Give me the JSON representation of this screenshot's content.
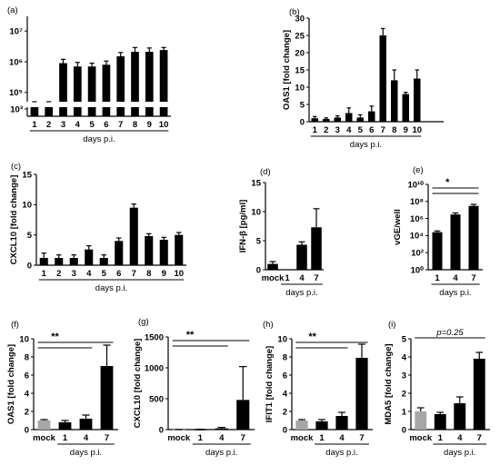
{
  "chart_data": [
    {
      "panel": "(a)",
      "type": "bar",
      "yscale": "log",
      "axis_break": true,
      "categories": [
        "1",
        "2",
        "3",
        "4",
        "5",
        "6",
        "7",
        "8",
        "9",
        "10"
      ],
      "values": [
        30000,
        22000,
        900000,
        700000,
        700000,
        800000,
        1500000,
        2100000,
        2100000,
        2400000
      ],
      "errors": [
        8000,
        12000,
        300000,
        250000,
        200000,
        250000,
        500000,
        800000,
        700000,
        500000
      ],
      "yticks": [
        1000,
        100000,
        1000000,
        10000000
      ],
      "ytick_labels": [
        "10³",
        "10⁵",
        "10⁶",
        "10⁷"
      ],
      "ylabel": "vGE/well",
      "xlabel": "days p.i.",
      "bar_colors": [
        "#000000"
      ]
    },
    {
      "panel": "(b)",
      "type": "bar",
      "yscale": "linear",
      "categories": [
        "1",
        "2",
        "3",
        "4",
        "5",
        "6",
        "7",
        "8",
        "9",
        "10"
      ],
      "values": [
        1,
        0.8,
        1.2,
        2.5,
        1.2,
        3,
        25,
        12,
        8,
        12.5
      ],
      "errors": [
        0.5,
        0.3,
        0.5,
        1.5,
        0.8,
        1.5,
        2,
        3,
        0.5,
        2.5
      ],
      "ylim": [
        0,
        30
      ],
      "yticks": [
        0,
        5,
        10,
        15,
        20,
        25,
        30
      ],
      "ytick_labels": [
        "0",
        "5",
        "10",
        "15",
        "20",
        "25",
        "30"
      ],
      "ylabel": "OAS1 [fold change]",
      "xlabel": "days p.i.",
      "bar_colors": [
        "#000000"
      ]
    },
    {
      "panel": "(c)",
      "type": "bar",
      "yscale": "linear",
      "categories": [
        "1",
        "2",
        "3",
        "4",
        "5",
        "6",
        "7",
        "8",
        "9",
        "10"
      ],
      "values": [
        1.2,
        1.2,
        1.2,
        2.6,
        1.2,
        4,
        9.5,
        4.8,
        4.2,
        5
      ],
      "errors": [
        0.8,
        0.5,
        0.5,
        0.6,
        0.5,
        0.5,
        0.6,
        0.4,
        0.4,
        0.4
      ],
      "ylim": [
        0,
        15
      ],
      "yticks": [
        0,
        5,
        10,
        15
      ],
      "ytick_labels": [
        "0",
        "5",
        "10",
        "15"
      ],
      "ylabel": "CXCL10 [fold change]",
      "xlabel": "days p.i.",
      "bar_colors": [
        "#000000"
      ]
    },
    {
      "panel": "(d)",
      "type": "bar",
      "yscale": "linear",
      "categories": [
        "mock",
        "1",
        "4",
        "7"
      ],
      "values": [
        1,
        0,
        4.3,
        7.3
      ],
      "errors": [
        0.4,
        0,
        0.5,
        3.2
      ],
      "ylim": [
        0,
        15
      ],
      "yticks": [
        0,
        5,
        10,
        15
      ],
      "ytick_labels": [
        "0",
        "5",
        "10",
        "15"
      ],
      "ylabel": "IFN-β [pg/ml]",
      "xlabel": "days p.i.",
      "bar_colors": [
        "#000000"
      ]
    },
    {
      "panel": "(e)",
      "type": "bar",
      "yscale": "log",
      "categories": [
        "1",
        "4",
        "7"
      ],
      "values": [
        25000,
        3000000,
        30000000
      ],
      "errors": [
        10000,
        1500000,
        15000000
      ],
      "ylim": [
        1,
        10000000000
      ],
      "yticks": [
        1,
        100,
        10000,
        1000000,
        100000000,
        10000000000
      ],
      "ytick_labels": [
        "10⁰",
        "10²",
        "10⁴",
        "10⁶",
        "10⁸",
        "10¹⁰"
      ],
      "ylabel": "vGE/well",
      "xlabel": "days p.i.",
      "bar_colors": [
        "#000000"
      ],
      "significance": [
        {
          "from": "1",
          "to": "7",
          "label": "*"
        }
      ]
    },
    {
      "panel": "(f)",
      "type": "bar",
      "yscale": "linear",
      "categories": [
        "mock",
        "1",
        "4",
        "7"
      ],
      "values": [
        1,
        0.8,
        1.2,
        7
      ],
      "errors": [
        0.1,
        0.2,
        0.4,
        2.3
      ],
      "ylim": [
        0,
        10
      ],
      "yticks": [
        0,
        2,
        4,
        6,
        8,
        10
      ],
      "ytick_labels": [
        "0",
        "2",
        "4",
        "6",
        "8",
        "10"
      ],
      "ylabel": "OAS1 [fold change]",
      "xlabel": "days p.i.",
      "bar_colors": [
        "#a6a6a6",
        "#000000",
        "#000000",
        "#000000"
      ],
      "significance": [
        {
          "from": "mock",
          "to": "7",
          "label": "**"
        }
      ]
    },
    {
      "panel": "(g)",
      "type": "bar",
      "yscale": "linear",
      "categories": [
        "mock",
        "1",
        "4",
        "7"
      ],
      "values": [
        1,
        3,
        20,
        480
      ],
      "errors": [
        0.5,
        2,
        15,
        540
      ],
      "ylim": [
        0,
        1500
      ],
      "yticks": [
        0,
        500,
        1000,
        1500
      ],
      "ytick_labels": [
        "0",
        "500",
        "1000",
        "1500"
      ],
      "ylabel": "CXCL10 [fold change]",
      "xlabel": "days p.i.",
      "bar_colors": [
        "#a6a6a6",
        "#000000",
        "#000000",
        "#000000"
      ],
      "significance": [
        {
          "from": "mock",
          "to": "7",
          "label": "**"
        }
      ]
    },
    {
      "panel": "(h)",
      "type": "bar",
      "yscale": "linear",
      "categories": [
        "mock",
        "1",
        "4",
        "7"
      ],
      "values": [
        1,
        0.9,
        1.5,
        7.9
      ],
      "errors": [
        0.1,
        0.2,
        0.4,
        1.5
      ],
      "ylim": [
        0,
        10
      ],
      "yticks": [
        0,
        2,
        4,
        6,
        8,
        10
      ],
      "ytick_labels": [
        "0",
        "2",
        "4",
        "6",
        "8",
        "10"
      ],
      "ylabel": "IFIT1 [fold change]",
      "xlabel": "days p.i.",
      "bar_colors": [
        "#a6a6a6",
        "#000000",
        "#000000",
        "#000000"
      ],
      "significance": [
        {
          "from": "mock",
          "to": "7",
          "label": "**"
        }
      ]
    },
    {
      "panel": "(i)",
      "type": "bar",
      "yscale": "linear",
      "categories": [
        "mock",
        "1",
        "4",
        "7"
      ],
      "values": [
        1,
        0.85,
        1.45,
        3.9
      ],
      "errors": [
        0.2,
        0.1,
        0.35,
        0.35
      ],
      "ylim": [
        0,
        5
      ],
      "yticks": [
        0,
        1,
        2,
        3,
        4,
        5
      ],
      "ytick_labels": [
        "0",
        "1",
        "2",
        "3",
        "4",
        "5"
      ],
      "ylabel": "MDA5 [fold change]",
      "xlabel": "days p.i.",
      "bar_colors": [
        "#a6a6a6",
        "#000000",
        "#000000",
        "#000000"
      ],
      "significance": [
        {
          "from": "mock",
          "to": "7",
          "label": "p=0.25"
        }
      ]
    }
  ]
}
